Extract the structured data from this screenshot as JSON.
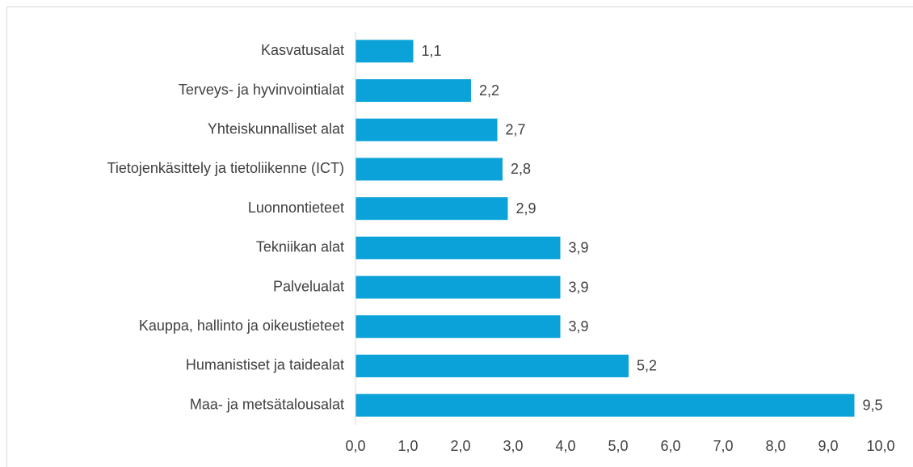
{
  "chart_data": {
    "type": "barh",
    "categories": [
      "Kasvatusalat",
      "Terveys- ja hyvinvointialat",
      "Yhteiskunnalliset alat",
      "Tietojenkäsittely ja tietoliikenne (ICT)",
      "Luonnontieteet",
      "Tekniikan alat",
      "Palvelualat",
      "Kauppa, hallinto ja oikeustieteet",
      "Humanistiset ja taidealat",
      "Maa- ja metsätalousalat"
    ],
    "values": [
      1.1,
      2.2,
      2.7,
      2.8,
      2.9,
      3.9,
      3.9,
      3.9,
      5.2,
      9.5
    ],
    "value_labels": [
      "1,1",
      "2,2",
      "2,7",
      "2,8",
      "2,9",
      "3,9",
      "3,9",
      "3,9",
      "5,2",
      "9,5"
    ],
    "color": "#0aa2d9",
    "xlim": [
      0,
      10
    ],
    "xticks": [
      {
        "value": 0,
        "label": "0,0"
      },
      {
        "value": 1,
        "label": "1,0"
      },
      {
        "value": 2,
        "label": "2,0"
      },
      {
        "value": 3,
        "label": "3,0"
      },
      {
        "value": 4,
        "label": "4,0"
      },
      {
        "value": 5,
        "label": "5,0"
      },
      {
        "value": 6,
        "label": "6,0"
      },
      {
        "value": 7,
        "label": "7,0"
      },
      {
        "value": 8,
        "label": "8,0"
      },
      {
        "value": 9,
        "label": "9,0"
      },
      {
        "value": 10,
        "label": "10,0"
      }
    ],
    "grid": false
  }
}
